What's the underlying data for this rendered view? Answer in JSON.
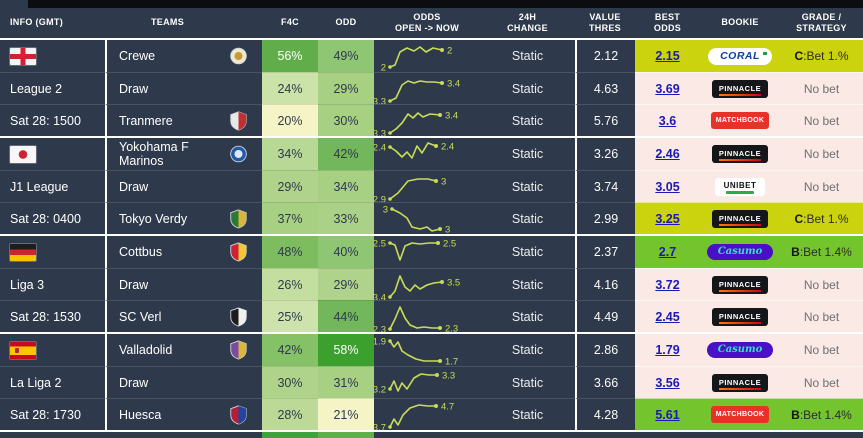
{
  "colors": {
    "background": "#2e3a4b",
    "highlight_yellow": "#cbd30e",
    "highlight_green": "#74c52d",
    "highlight_pink": "#fbe9e6",
    "sparkline": "#c9dc55",
    "best_odds_link": "#1a1ab3"
  },
  "header": {
    "info": "INFO (GMT)",
    "teams": "TEAMS",
    "f4c": "F4C",
    "odd": "ODD",
    "odds_l1": "ODDS",
    "odds_l2": "OPEN -> NOW",
    "change_l1": "24H",
    "change_l2": "CHANGE",
    "thres_l1": "VALUE",
    "thres_l2": "THRES",
    "best_l1": "BEST",
    "best_l2": "ODDS",
    "bookie": "BOOKIE",
    "grade_l1": "GRADE /",
    "grade_l2": "STRATEGY"
  },
  "bookies": {
    "coral": {
      "label": "CORAL",
      "style": "coral"
    },
    "pinnacle": {
      "label": "PINNACLE",
      "style": "pinnacle"
    },
    "matchbook": {
      "label": "MATCHBOOK",
      "style": "matchbook"
    },
    "unibet": {
      "label": "UNIBET",
      "style": "unibet"
    },
    "casumo": {
      "label": "Casumo",
      "style": "casumo"
    }
  },
  "groups": [
    {
      "flag": "england",
      "league": "League 2",
      "datetime": "Sat 28: 1500",
      "rows": [
        {
          "team": "Crewe",
          "crest": {
            "shape": "circle",
            "c1": "#efe8d0",
            "c2": "#c79a2f"
          },
          "f4c": {
            "text": "56%",
            "bg": "#61ad4b",
            "light": true
          },
          "odd": {
            "text": "49%",
            "bg": "#8fc673"
          },
          "spark": {
            "start": "2",
            "end": "2",
            "pts": [
              [
                16,
                27
              ],
              [
                21,
                25
              ],
              [
                26,
                12
              ],
              [
                33,
                8
              ],
              [
                40,
                11
              ],
              [
                46,
                7
              ],
              [
                52,
                12
              ],
              [
                59,
                8
              ],
              [
                68,
                10
              ]
            ]
          },
          "change": "Static",
          "thres": "2.12",
          "best": "2.15",
          "bookie": "coral",
          "highlight": "yellow",
          "grade_bold": "C",
          "grade_rest": ":Bet 1.%"
        },
        {
          "team": "Draw",
          "crest": null,
          "f4c": {
            "text": "24%",
            "bg": "#cbe2a8"
          },
          "odd": {
            "text": "29%",
            "bg": "#a7d083"
          },
          "spark": {
            "start": "3.3",
            "end": "3.4",
            "pts": [
              [
                16,
                28
              ],
              [
                22,
                25
              ],
              [
                28,
                12
              ],
              [
                34,
                8
              ],
              [
                40,
                10
              ],
              [
                46,
                8
              ],
              [
                53,
                9
              ],
              [
                60,
                9
              ],
              [
                68,
                10
              ]
            ]
          },
          "change": "Static",
          "thres": "4.63",
          "best": "3.69",
          "bookie": "pinnacle",
          "highlight": "pink",
          "grade_bold": "",
          "grade_rest": "No bet"
        },
        {
          "team": "Tranmere",
          "crest": {
            "shape": "shield",
            "c1": "#e8e8e8",
            "c2": "#c03030"
          },
          "f4c": {
            "text": "20%",
            "bg": "#f4f4c6"
          },
          "odd": {
            "text": "30%",
            "bg": "#a7d083"
          },
          "spark": {
            "start": "3.3",
            "end": "3.4",
            "pts": [
              [
                16,
                28
              ],
              [
                22,
                24
              ],
              [
                28,
                18
              ],
              [
                34,
                9
              ],
              [
                39,
                13
              ],
              [
                44,
                8
              ],
              [
                49,
                12
              ],
              [
                56,
                9
              ],
              [
                66,
                10
              ]
            ]
          },
          "change": "Static",
          "thres": "5.76",
          "best": "3.6",
          "bookie": "matchbook",
          "highlight": "pink",
          "grade_bold": "",
          "grade_rest": "No bet"
        }
      ]
    },
    {
      "flag": "japan",
      "league": "J1 League",
      "datetime": "Sat 28: 0400",
      "rows": [
        {
          "team": "Yokohama F Marinos",
          "crest": {
            "shape": "circle",
            "c1": "#2458a8",
            "c2": "#dfe9f2"
          },
          "f4c": {
            "text": "34%",
            "bg": "#b8d895"
          },
          "odd": {
            "text": "42%",
            "bg": "#72b75b"
          },
          "spark": {
            "start": "2.4",
            "end": "2.4",
            "pts": [
              [
                16,
                9
              ],
              [
                22,
                13
              ],
              [
                28,
                19
              ],
              [
                33,
                14
              ],
              [
                38,
                20
              ],
              [
                43,
                8
              ],
              [
                48,
                15
              ],
              [
                54,
                5
              ],
              [
                62,
                8
              ]
            ]
          },
          "change": "Static",
          "thres": "3.26",
          "best": "2.46",
          "bookie": "pinnacle",
          "highlight": "pink",
          "grade_bold": "",
          "grade_rest": "No bet"
        },
        {
          "team": "Draw",
          "crest": null,
          "f4c": {
            "text": "29%",
            "bg": "#b0d38c"
          },
          "odd": {
            "text": "34%",
            "bg": "#a7d083"
          },
          "spark": {
            "start": "2.9",
            "end": "3",
            "pts": [
              [
                16,
                28
              ],
              [
                24,
                22
              ],
              [
                34,
                10
              ],
              [
                44,
                8
              ],
              [
                54,
                8
              ],
              [
                62,
                10
              ]
            ]
          },
          "change": "Static",
          "thres": "3.74",
          "best": "3.05",
          "bookie": "unibet",
          "highlight": "pink",
          "grade_bold": "",
          "grade_rest": "No bet"
        },
        {
          "team": "Tokyo Verdy",
          "crest": {
            "shape": "shield",
            "c1": "#2a7a34",
            "c2": "#d9b73c"
          },
          "f4c": {
            "text": "37%",
            "bg": "#a7d083"
          },
          "odd": {
            "text": "33%",
            "bg": "#abd189"
          },
          "spark": {
            "start": "3",
            "end": "3",
            "pts": [
              [
                18,
                6
              ],
              [
                26,
                10
              ],
              [
                33,
                15
              ],
              [
                38,
                24
              ],
              [
                46,
                26
              ],
              [
                53,
                24
              ],
              [
                58,
                28
              ],
              [
                66,
                26
              ]
            ]
          },
          "change": "Static",
          "thres": "2.99",
          "best": "3.25",
          "bookie": "pinnacle",
          "highlight": "yellow",
          "grade_bold": "C",
          "grade_rest": ":Bet 1.%"
        }
      ]
    },
    {
      "flag": "germany",
      "league": "Liga 3",
      "datetime": "Sat 28: 1530",
      "rows": [
        {
          "team": "Cottbus",
          "crest": {
            "shape": "shield",
            "c1": "#cf2233",
            "c2": "#f2c838"
          },
          "f4c": {
            "text": "48%",
            "bg": "#7dbd60"
          },
          "odd": {
            "text": "40%",
            "bg": "#8fc673"
          },
          "spark": {
            "start": "2.5",
            "end": "2.5",
            "pts": [
              [
                16,
                7
              ],
              [
                21,
                9
              ],
              [
                26,
                24
              ],
              [
                31,
                10
              ],
              [
                38,
                7
              ],
              [
                46,
                8
              ],
              [
                55,
                7
              ],
              [
                64,
                7
              ]
            ]
          },
          "change": "Static",
          "thres": "2.37",
          "best": "2.7",
          "bookie": "casumo",
          "highlight": "green",
          "grade_bold": "B",
          "grade_rest": ":Bet 1.4%"
        },
        {
          "team": "Draw",
          "crest": null,
          "f4c": {
            "text": "26%",
            "bg": "#c3de9e"
          },
          "odd": {
            "text": "29%",
            "bg": "#b0d38c"
          },
          "spark": {
            "start": "3.4",
            "end": "3.5",
            "pts": [
              [
                16,
                28
              ],
              [
                21,
                22
              ],
              [
                26,
                7
              ],
              [
                31,
                18
              ],
              [
                36,
                22
              ],
              [
                41,
                16
              ],
              [
                46,
                20
              ],
              [
                53,
                16
              ],
              [
                60,
                14
              ],
              [
                68,
                13
              ]
            ]
          },
          "change": "Static",
          "thres": "4.16",
          "best": "3.72",
          "bookie": "pinnacle",
          "highlight": "pink",
          "grade_bold": "",
          "grade_rest": "No bet"
        },
        {
          "team": "SC Verl",
          "crest": {
            "shape": "shield",
            "c1": "#1d1d1d",
            "c2": "#f0f0f0"
          },
          "f4c": {
            "text": "25%",
            "bg": "#cde3ab"
          },
          "odd": {
            "text": "44%",
            "bg": "#72b75b"
          },
          "spark": {
            "start": "2.3",
            "end": "2.3",
            "pts": [
              [
                16,
                28
              ],
              [
                21,
                18
              ],
              [
                26,
                6
              ],
              [
                31,
                17
              ],
              [
                36,
                24
              ],
              [
                43,
                27
              ],
              [
                50,
                26
              ],
              [
                58,
                27
              ],
              [
                66,
                27
              ]
            ]
          },
          "change": "Static",
          "thres": "4.49",
          "best": "2.45",
          "bookie": "pinnacle",
          "highlight": "pink",
          "grade_bold": "",
          "grade_rest": "No bet"
        }
      ]
    },
    {
      "flag": "spain",
      "league": "La Liga 2",
      "datetime": "Sat 28: 1730",
      "rows": [
        {
          "team": "Valladolid",
          "crest": {
            "shape": "shield",
            "c1": "#7a4ba0",
            "c2": "#d9b73c"
          },
          "f4c": {
            "text": "42%",
            "bg": "#85c167"
          },
          "odd": {
            "text": "58%",
            "bg": "#3ba02e",
            "light": true
          },
          "spark": {
            "start": "1.9",
            "end": "1.7",
            "pts": [
              [
                16,
                7
              ],
              [
                20,
                13
              ],
              [
                24,
                8
              ],
              [
                28,
                17
              ],
              [
                34,
                21
              ],
              [
                42,
                25
              ],
              [
                50,
                27
              ],
              [
                58,
                27
              ],
              [
                66,
                27
              ]
            ]
          },
          "change": "Static",
          "thres": "2.86",
          "best": "1.79",
          "bookie": "casumo",
          "highlight": "pink",
          "grade_bold": "",
          "grade_rest": "No bet"
        },
        {
          "team": "Draw",
          "crest": null,
          "f4c": {
            "text": "30%",
            "bg": "#b0d38c"
          },
          "odd": {
            "text": "31%",
            "bg": "#a7d083"
          },
          "spark": {
            "start": "3.2",
            "end": "3.3",
            "pts": [
              [
                16,
                22
              ],
              [
                20,
                14
              ],
              [
                24,
                24
              ],
              [
                28,
                16
              ],
              [
                33,
                22
              ],
              [
                40,
                11
              ],
              [
                47,
                7
              ],
              [
                55,
                8
              ],
              [
                63,
                8
              ]
            ]
          },
          "change": "Static",
          "thres": "3.66",
          "best": "3.56",
          "bookie": "pinnacle",
          "highlight": "pink",
          "grade_bold": "",
          "grade_rest": "No bet"
        },
        {
          "team": "Huesca",
          "crest": {
            "shape": "shield",
            "c1": "#b01f3a",
            "c2": "#24459c"
          },
          "f4c": {
            "text": "28%",
            "bg": "#bcd998"
          },
          "odd": {
            "text": "21%",
            "bg": "#f4f4c6"
          },
          "spark": {
            "start": "3.7",
            "end": "4.7",
            "pts": [
              [
                16,
                28
              ],
              [
                20,
                20
              ],
              [
                24,
                26
              ],
              [
                29,
                16
              ],
              [
                36,
                9
              ],
              [
                45,
                6
              ],
              [
                54,
                7
              ],
              [
                62,
                7
              ]
            ]
          },
          "change": "Static",
          "thres": "4.28",
          "best": "5.61",
          "bookie": "matchbook",
          "highlight": "green",
          "grade_bold": "B",
          "grade_rest": ":Bet 1.4%"
        }
      ]
    }
  ]
}
